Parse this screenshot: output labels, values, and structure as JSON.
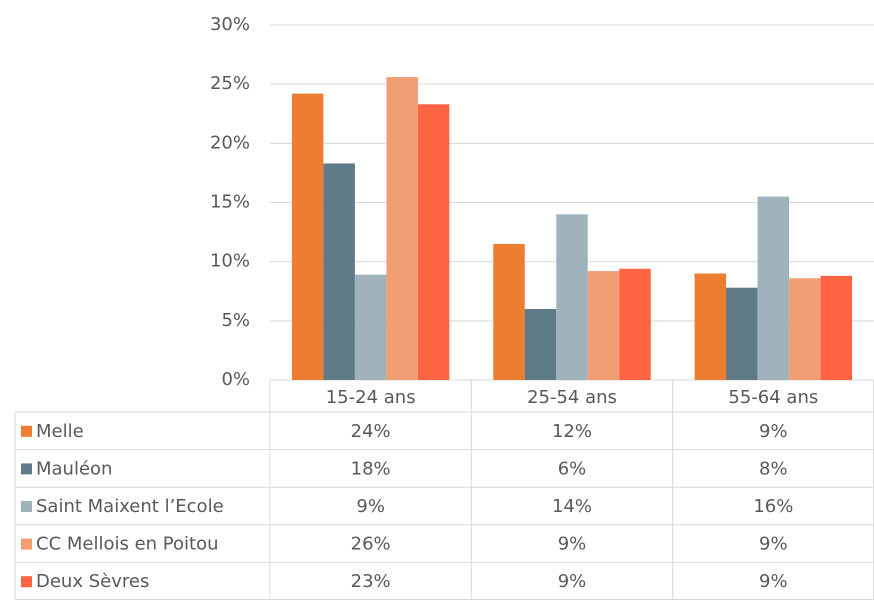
{
  "chart_data": {
    "type": "bar",
    "categories": [
      "15-24 ans",
      "25-54 ans",
      "55-64 ans"
    ],
    "series": [
      {
        "name": "Melle",
        "color": "#ed7d31",
        "values": [
          24.2,
          11.5,
          9.0
        ],
        "value_labels": [
          "24%",
          "12%",
          "9%"
        ]
      },
      {
        "name": "Mauléon",
        "color": "#5f7b88",
        "values": [
          18.3,
          6.0,
          7.8
        ],
        "value_labels": [
          "18%",
          "6%",
          "8%"
        ]
      },
      {
        "name": "Saint Maixent l’Ecole",
        "color": "#a0b3bd",
        "values": [
          8.9,
          14.0,
          15.5
        ],
        "value_labels": [
          "9%",
          "14%",
          "16%"
        ]
      },
      {
        "name": "CC Mellois en Poitou",
        "color": "#f19e74",
        "values": [
          25.6,
          9.2,
          8.6
        ],
        "value_labels": [
          "26%",
          "9%",
          "9%"
        ]
      },
      {
        "name": "Deux Sèvres",
        "color": "#fd6542",
        "values": [
          23.3,
          9.4,
          8.8
        ],
        "value_labels": [
          "23%",
          "9%",
          "9%"
        ]
      }
    ],
    "ylim": [
      0,
      30
    ],
    "yticks": [
      {
        "value": 0,
        "label": "0%"
      },
      {
        "value": 5,
        "label": "5%"
      },
      {
        "value": 10,
        "label": "10%"
      },
      {
        "value": 15,
        "label": "15%"
      },
      {
        "value": 20,
        "label": "20%"
      },
      {
        "value": 25,
        "label": "25%"
      },
      {
        "value": 30,
        "label": "30%"
      }
    ],
    "grid": true,
    "data_table": true
  }
}
